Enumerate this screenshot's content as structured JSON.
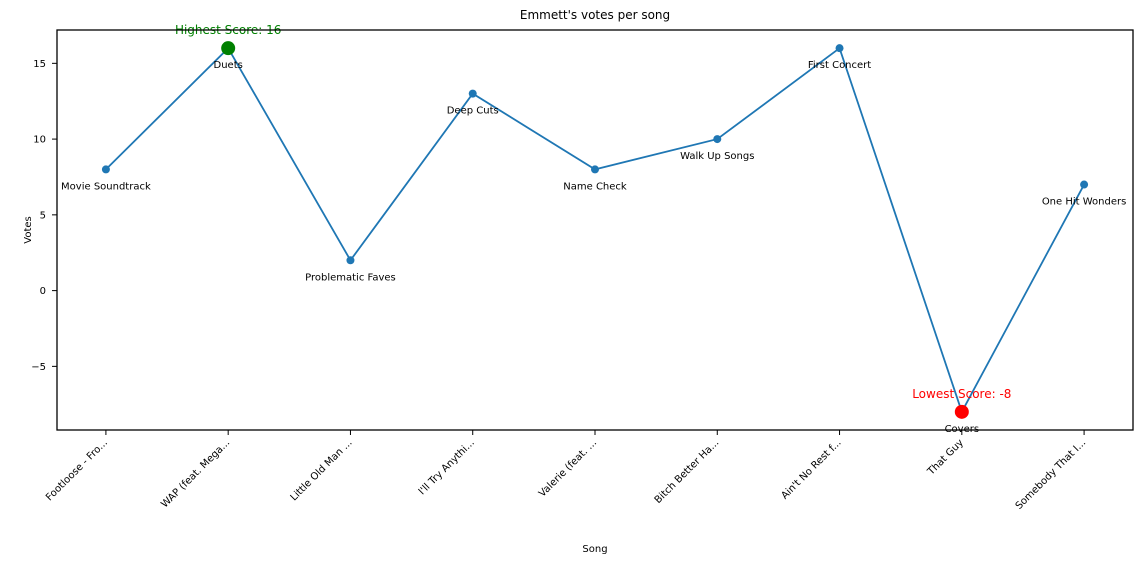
{
  "chart_data": {
    "type": "line",
    "title": "Emmett's votes per song",
    "xlabel": "Song",
    "ylabel": "Votes",
    "categories": [
      "Footloose - Fro...",
      "WAP (feat. Mega...",
      "Little Old Man ...",
      "I'll Try Anythi...",
      "Valerie (feat. ...",
      "Bitch Better Ha...",
      "Ain't No Rest f...",
      "That Guy",
      "Somebody That I..."
    ],
    "point_labels": [
      "Movie Soundtrack",
      "Duets",
      "Problematic Faves",
      "Deep Cuts",
      "Name Check",
      "Walk Up Songs",
      "First Concert",
      "Covers",
      "One Hit Wonders"
    ],
    "values": [
      8,
      16,
      2,
      13,
      8,
      10,
      16,
      -8,
      7
    ],
    "y_ticks": [
      -5,
      0,
      5,
      10,
      15
    ],
    "xlim": [
      -0.4,
      8.4
    ],
    "ylim": [
      -9.2,
      17.2
    ],
    "grid": false,
    "legend": "none",
    "line_color": "#1f77b4",
    "marker_color": "#1f77b4",
    "annotations": [
      {
        "role": "max",
        "text": "Highest Score: 16",
        "index": 1,
        "color": "#008000"
      },
      {
        "role": "min",
        "text": "Lowest Score: -8",
        "index": 7,
        "color": "#ff0000"
      }
    ]
  }
}
